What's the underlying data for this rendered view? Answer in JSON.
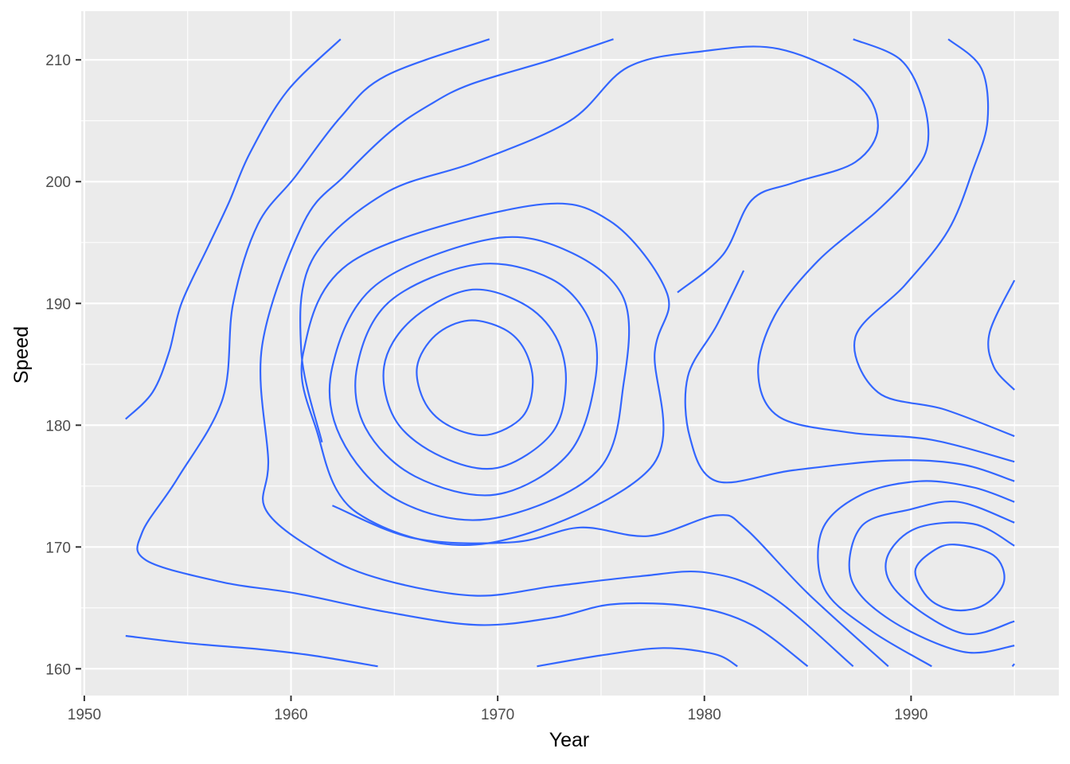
{
  "chart_data": {
    "type": "contour",
    "title": "",
    "xlabel": "Year",
    "ylabel": "Speed",
    "xlim": [
      1949.85,
      1997.15
    ],
    "ylim": [
      157.8,
      214.0
    ],
    "x_ticks": [
      1950,
      1960,
      1970,
      1980,
      1990
    ],
    "y_ticks": [
      160,
      170,
      180,
      190,
      200,
      210
    ],
    "x_tick_labels": [
      "1950",
      "1960",
      "1970",
      "1980",
      "1990"
    ],
    "y_tick_labels": [
      "160",
      "170",
      "180",
      "190",
      "200",
      "210"
    ],
    "grid": true,
    "legend": "none",
    "colors": {
      "panel": "#ebebeb",
      "grid": "#ffffff",
      "line": "#3366ff",
      "tick": "#333333"
    },
    "contours": [
      {
        "points": [
          [
            1968.6,
            188.6
          ],
          [
            1970.3,
            187.9
          ],
          [
            1971.3,
            186.2
          ],
          [
            1971.7,
            183.5
          ],
          [
            1971.2,
            180.7
          ],
          [
            1969.5,
            179.2
          ],
          [
            1967.7,
            179.9
          ],
          [
            1966.5,
            181.8
          ],
          [
            1966.1,
            184.8
          ],
          [
            1967.0,
            187.4
          ]
        ],
        "closed": true
      },
      {
        "points": [
          [
            1968.6,
            191.1
          ],
          [
            1971.2,
            190.0
          ],
          [
            1972.8,
            187.3
          ],
          [
            1973.3,
            183.5
          ],
          [
            1972.6,
            179.3
          ],
          [
            1970.0,
            176.5
          ],
          [
            1967.3,
            177.4
          ],
          [
            1965.1,
            180.3
          ],
          [
            1964.5,
            184.8
          ],
          [
            1965.8,
            188.6
          ]
        ],
        "closed": true
      },
      {
        "points": [
          [
            1969.0,
            193.2
          ],
          [
            1972.6,
            192.0
          ],
          [
            1974.5,
            188.4
          ],
          [
            1974.7,
            183.5
          ],
          [
            1973.4,
            177.6
          ],
          [
            1969.9,
            174.3
          ],
          [
            1966.0,
            175.8
          ],
          [
            1963.6,
            179.8
          ],
          [
            1963.2,
            184.8
          ],
          [
            1964.8,
            190.2
          ]
        ],
        "closed": true
      },
      {
        "points": [
          [
            1969.7,
            195.3
          ],
          [
            1973.4,
            194.3
          ],
          [
            1976.1,
            190.4
          ],
          [
            1976.1,
            183.5
          ],
          [
            1974.8,
            176.2
          ],
          [
            1969.6,
            172.3
          ],
          [
            1965.1,
            173.9
          ],
          [
            1962.4,
            179.0
          ],
          [
            1962.0,
            184.8
          ],
          [
            1964.1,
            191.5
          ]
        ],
        "closed": true
      },
      {
        "points": [
          [
            1971.5,
            198.0
          ],
          [
            1975.4,
            196.8
          ],
          [
            1978.2,
            190.8
          ],
          [
            1977.6,
            186.0
          ],
          [
            1977.4,
            176.5
          ],
          [
            1969.5,
            170.3
          ],
          [
            1963.2,
            172.8
          ],
          [
            1961.2,
            179.8
          ],
          [
            1960.6,
            186.0
          ],
          [
            1963.0,
            193.5
          ]
        ],
        "closed": true
      },
      {
        "points": [
          [
            1952.0,
            180.5
          ],
          [
            1953.3,
            182.7
          ],
          [
            1954.1,
            186.0
          ],
          [
            1954.7,
            190.0
          ],
          [
            1956.0,
            194.7
          ],
          [
            1957.0,
            198.3
          ],
          [
            1958.0,
            202.3
          ],
          [
            1959.8,
            207.4
          ],
          [
            1962.4,
            211.7
          ]
        ],
        "closed": false
      },
      {
        "points": [
          [
            1969.6,
            211.7
          ],
          [
            1964.6,
            208.7
          ],
          [
            1962.4,
            205.3
          ],
          [
            1960.2,
            200.4
          ],
          [
            1958.4,
            196.5
          ],
          [
            1957.2,
            190.0
          ],
          [
            1956.7,
            182.2
          ],
          [
            1954.5,
            175.6
          ],
          [
            1952.8,
            171.2
          ],
          [
            1953.0,
            168.9
          ],
          [
            1956.7,
            167.1
          ],
          [
            1960.2,
            166.2
          ],
          [
            1964.5,
            164.7
          ],
          [
            1969.0,
            163.6
          ],
          [
            1972.7,
            164.2
          ],
          [
            1975.6,
            165.3
          ],
          [
            1979.4,
            165.1
          ],
          [
            1982.3,
            163.6
          ],
          [
            1985.0,
            160.2
          ]
        ],
        "closed": false
      },
      {
        "points": [
          [
            1975.6,
            211.7
          ],
          [
            1972.6,
            210.0
          ],
          [
            1968.7,
            208.0
          ],
          [
            1966.7,
            206.3
          ],
          [
            1964.8,
            204.1
          ],
          [
            1962.6,
            200.5
          ],
          [
            1960.6,
            196.6
          ],
          [
            1958.6,
            186.5
          ],
          [
            1958.9,
            177.1
          ],
          [
            1958.8,
            173.0
          ],
          [
            1961.5,
            169.4
          ],
          [
            1964.5,
            167.3
          ],
          [
            1968.9,
            166.0
          ],
          [
            1972.8,
            166.8
          ],
          [
            1976.9,
            167.6
          ],
          [
            1980.1,
            167.9
          ],
          [
            1983.2,
            166.0
          ],
          [
            1987.2,
            160.2
          ]
        ],
        "closed": false
      },
      {
        "points": [
          [
            1987.2,
            211.7
          ],
          [
            1989.5,
            210.0
          ],
          [
            1990.6,
            206.5
          ],
          [
            1990.8,
            203.0
          ],
          [
            1990.0,
            200.5
          ],
          [
            1988.3,
            197.5
          ],
          [
            1985.5,
            193.5
          ],
          [
            1983.4,
            189.0
          ],
          [
            1982.6,
            184.3
          ],
          [
            1983.6,
            180.7
          ],
          [
            1987.0,
            179.4
          ],
          [
            1991.0,
            178.8
          ],
          [
            1995.0,
            177.0
          ]
        ],
        "closed": false
      },
      {
        "points": [
          [
            1991.8,
            211.7
          ],
          [
            1993.4,
            209.3
          ],
          [
            1993.7,
            205.0
          ],
          [
            1993.0,
            201.0
          ],
          [
            1991.8,
            196.0
          ],
          [
            1989.7,
            191.5
          ],
          [
            1987.3,
            187.2
          ],
          [
            1988.4,
            182.7
          ],
          [
            1991.6,
            181.3
          ],
          [
            1995.0,
            179.1
          ]
        ],
        "closed": false
      },
      {
        "points": [
          [
            1995.0,
            191.9
          ],
          [
            1993.8,
            187.6
          ],
          [
            1994.0,
            184.8
          ],
          [
            1995.0,
            182.9
          ]
        ],
        "closed": false
      },
      {
        "points": [
          [
            1952.0,
            162.7
          ],
          [
            1955.0,
            162.1
          ],
          [
            1958.5,
            161.6
          ],
          [
            1961.0,
            161.1
          ],
          [
            1964.2,
            160.2
          ]
        ],
        "closed": false
      },
      {
        "points": [
          [
            1971.9,
            160.2
          ],
          [
            1975.0,
            161.1
          ],
          [
            1978.0,
            161.7
          ],
          [
            1980.5,
            161.2
          ],
          [
            1981.6,
            160.2
          ]
        ],
        "closed": false
      },
      {
        "points": [
          [
            1962.0,
            173.4
          ],
          [
            1966.0,
            170.7
          ],
          [
            1970.8,
            170.4
          ],
          [
            1974.0,
            171.6
          ],
          [
            1977.3,
            170.9
          ],
          [
            1980.6,
            172.6
          ],
          [
            1982.0,
            171.5
          ],
          [
            1985.0,
            166.2
          ],
          [
            1988.9,
            160.2
          ]
        ],
        "closed": false
      },
      {
        "points": [
          [
            1978.7,
            190.9
          ],
          [
            1980.9,
            194.0
          ],
          [
            1982.3,
            198.5
          ],
          [
            1984.3,
            199.9
          ],
          [
            1987.3,
            201.6
          ],
          [
            1988.4,
            204.6
          ],
          [
            1987.3,
            208.1
          ],
          [
            1983.6,
            210.9
          ],
          [
            1979.9,
            210.7
          ],
          [
            1976.3,
            209.4
          ],
          [
            1973.5,
            205.0
          ],
          [
            1968.9,
            201.6
          ],
          [
            1964.5,
            199.0
          ],
          [
            1961.0,
            193.5
          ],
          [
            1960.5,
            186.0
          ],
          [
            1961.5,
            178.6
          ]
        ],
        "closed": false
      },
      {
        "points": [
          [
            1995.0,
            175.4
          ],
          [
            1992.4,
            176.8
          ],
          [
            1989.0,
            177.1
          ],
          [
            1984.3,
            176.3
          ],
          [
            1980.6,
            175.4
          ],
          [
            1979.3,
            179.0
          ],
          [
            1979.2,
            184.0
          ],
          [
            1980.6,
            188.2
          ],
          [
            1981.9,
            192.7
          ]
        ],
        "closed": false
      },
      {
        "points": [
          [
            1995.0,
            173.7
          ],
          [
            1993.0,
            174.9
          ],
          [
            1990.4,
            175.4
          ],
          [
            1987.6,
            174.3
          ],
          [
            1985.7,
            171.4
          ],
          [
            1985.8,
            166.6
          ],
          [
            1988.0,
            163.2
          ],
          [
            1991.0,
            160.2
          ]
        ],
        "closed": false
      },
      {
        "points": [
          [
            1995.0,
            172.0
          ],
          [
            1992.3,
            173.7
          ],
          [
            1990.0,
            173.1
          ],
          [
            1987.6,
            171.7
          ],
          [
            1987.1,
            167.4
          ],
          [
            1989.0,
            164.0
          ],
          [
            1992.5,
            161.4
          ],
          [
            1995.0,
            161.9
          ]
        ],
        "closed": false
      },
      {
        "points": [
          [
            1995.0,
            170.1
          ],
          [
            1993.0,
            171.9
          ],
          [
            1990.2,
            171.5
          ],
          [
            1988.8,
            168.9
          ],
          [
            1989.5,
            166.0
          ],
          [
            1992.5,
            162.9
          ],
          [
            1995.0,
            163.9
          ]
        ],
        "closed": false
      },
      {
        "points": [
          [
            1992.1,
            170.2
          ],
          [
            1994.0,
            169.3
          ],
          [
            1994.5,
            167.2
          ],
          [
            1993.6,
            165.3
          ],
          [
            1992.2,
            164.8
          ],
          [
            1990.9,
            165.7
          ],
          [
            1990.2,
            168.0
          ],
          [
            1991.0,
            169.6
          ]
        ],
        "closed": true
      },
      {
        "points": [
          [
            1995.0,
            160.4
          ],
          [
            1994.9,
            160.2
          ]
        ],
        "closed": false
      }
    ]
  }
}
